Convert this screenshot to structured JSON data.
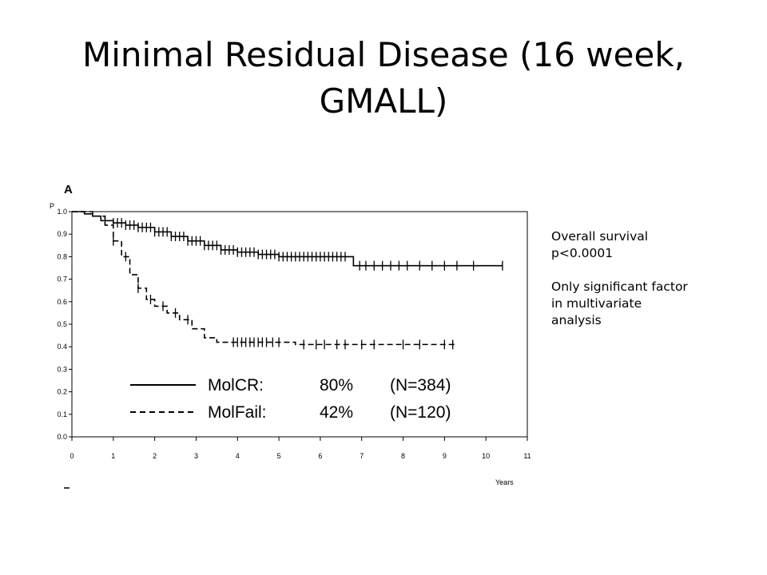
{
  "slide": {
    "title_line1": "Minimal Residual Disease (16 week,",
    "title_line2": "GMALL)"
  },
  "notes": {
    "line1": "Overall survival",
    "line2": "p<0.0001",
    "line3": "Only significant factor",
    "line4": "in multivariate",
    "line5": "analysis"
  },
  "chart_data": {
    "type": "line",
    "panel_label": "A",
    "ylabel": "P",
    "xlabel": "Years",
    "xlim": [
      0,
      11
    ],
    "ylim": [
      0,
      1.0
    ],
    "x_ticks": [
      "0",
      "1",
      "2",
      "3",
      "4",
      "5",
      "6",
      "7",
      "8",
      "9",
      "10",
      "11"
    ],
    "y_ticks": [
      "0.0",
      "0.1",
      "0.2",
      "0.3",
      "0.4",
      "0.5",
      "0.6",
      "0.7",
      "0.8",
      "0.9",
      "1.0"
    ],
    "legend": [
      {
        "name": "MolCR:",
        "pct": "80%",
        "n": "(N=384)"
      },
      {
        "name": "MolFail:",
        "pct": "42%",
        "n": "(N=120)"
      }
    ],
    "series": [
      {
        "name": "MolCR",
        "style": "solid",
        "x": [
          0,
          0.3,
          0.5,
          0.7,
          1.0,
          1.3,
          1.6,
          2.0,
          2.4,
          2.8,
          3.2,
          3.6,
          4.0,
          4.5,
          5.0,
          6.0,
          6.75,
          6.8,
          10.4
        ],
        "y": [
          1.0,
          0.99,
          0.98,
          0.96,
          0.95,
          0.94,
          0.93,
          0.91,
          0.89,
          0.87,
          0.85,
          0.83,
          0.82,
          0.81,
          0.8,
          0.8,
          0.8,
          0.76,
          0.76
        ],
        "censor_x": [
          0.8,
          1.0,
          1.1,
          1.2,
          1.3,
          1.4,
          1.5,
          1.6,
          1.7,
          1.8,
          1.9,
          2.0,
          2.1,
          2.2,
          2.3,
          2.4,
          2.5,
          2.6,
          2.7,
          2.8,
          2.9,
          3.0,
          3.1,
          3.2,
          3.3,
          3.4,
          3.5,
          3.6,
          3.7,
          3.8,
          3.9,
          4.0,
          4.1,
          4.2,
          4.3,
          4.4,
          4.5,
          4.6,
          4.7,
          4.8,
          4.9,
          5.0,
          5.1,
          5.2,
          5.3,
          5.4,
          5.5,
          5.6,
          5.7,
          5.8,
          5.9,
          6.0,
          6.1,
          6.2,
          6.3,
          6.4,
          6.5,
          6.6,
          6.95,
          7.1,
          7.3,
          7.5,
          7.7,
          7.9,
          8.1,
          8.4,
          8.7,
          9.0,
          9.3,
          9.7,
          10.4
        ]
      },
      {
        "name": "MolFail",
        "style": "dashed",
        "x": [
          0,
          0.5,
          0.8,
          1.0,
          1.2,
          1.4,
          1.6,
          1.8,
          2.0,
          2.3,
          2.6,
          2.9,
          3.2,
          3.5,
          3.8,
          4.5,
          5.2,
          5.4,
          9.3
        ],
        "y": [
          1.0,
          0.98,
          0.94,
          0.87,
          0.8,
          0.72,
          0.66,
          0.61,
          0.58,
          0.55,
          0.52,
          0.48,
          0.44,
          0.42,
          0.42,
          0.42,
          0.42,
          0.41,
          0.41
        ],
        "censor_x": [
          1.0,
          1.3,
          1.6,
          1.9,
          2.2,
          2.5,
          2.8,
          3.9,
          4.0,
          4.1,
          4.2,
          4.3,
          4.4,
          4.5,
          4.6,
          4.7,
          4.85,
          5.0,
          5.6,
          5.9,
          6.1,
          6.4,
          6.6,
          7.0,
          7.3,
          8.0,
          8.4,
          9.0,
          9.2
        ]
      }
    ]
  }
}
